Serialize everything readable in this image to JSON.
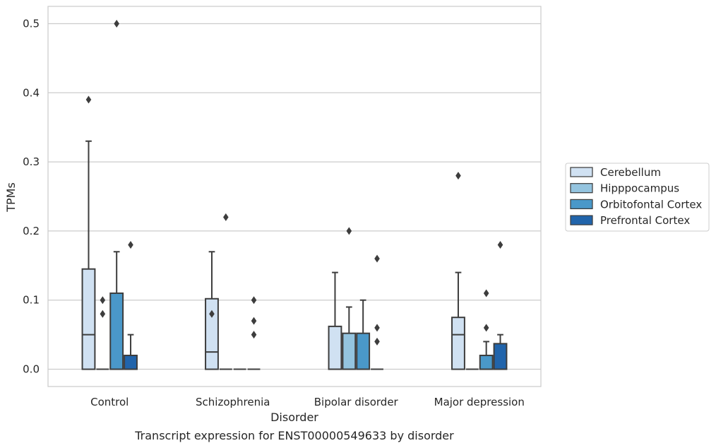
{
  "chart_data": {
    "type": "box",
    "title": "",
    "caption": "Transcript expression for ENST00000549633 by disorder",
    "xlabel": "Disorder",
    "ylabel": "TPMs",
    "ylim": [
      -0.025,
      0.525
    ],
    "yticks": [
      "0.0",
      "0.1",
      "0.2",
      "0.3",
      "0.4",
      "0.5"
    ],
    "ytick_values": [
      0.0,
      0.1,
      0.2,
      0.3,
      0.4,
      0.5
    ],
    "grid": "horizontal",
    "legend_position": "right",
    "categories": [
      "Control",
      "Schizophrenia",
      "Bipolar disorder",
      "Major depression"
    ],
    "series": [
      {
        "name": "Cerebellum",
        "color": "#d0e1f2",
        "boxes": [
          {
            "q1": 0.0,
            "median": 0.05,
            "q3": 0.145,
            "whisker_low": 0.0,
            "whisker_high": 0.33,
            "outliers": [
              0.39
            ]
          },
          {
            "q1": 0.0,
            "median": 0.025,
            "q3": 0.102,
            "whisker_low": 0.0,
            "whisker_high": 0.17,
            "outliers": [
              0.08
            ]
          },
          {
            "q1": 0.0,
            "median": 0.0,
            "q3": 0.062,
            "whisker_low": 0.0,
            "whisker_high": 0.14,
            "outliers": []
          },
          {
            "q1": 0.0,
            "median": 0.05,
            "q3": 0.075,
            "whisker_low": 0.0,
            "whisker_high": 0.14,
            "outliers": [
              0.28
            ]
          }
        ]
      },
      {
        "name": "Hipppocampus",
        "color": "#94c4df",
        "boxes": [
          {
            "q1": 0.0,
            "median": 0.0,
            "q3": 0.0,
            "whisker_low": 0.0,
            "whisker_high": 0.0,
            "outliers": [
              0.1,
              0.08
            ]
          },
          {
            "q1": 0.0,
            "median": 0.0,
            "q3": 0.0,
            "whisker_low": 0.0,
            "whisker_high": 0.0,
            "outliers": [
              0.22
            ]
          },
          {
            "q1": 0.0,
            "median": 0.0,
            "q3": 0.052,
            "whisker_low": 0.0,
            "whisker_high": 0.09,
            "outliers": [
              0.2
            ]
          },
          {
            "q1": 0.0,
            "median": 0.0,
            "q3": 0.0,
            "whisker_low": 0.0,
            "whisker_high": 0.0,
            "outliers": []
          }
        ]
      },
      {
        "name": "Orbitofontal Cortex",
        "color": "#4a98c9",
        "boxes": [
          {
            "q1": 0.0,
            "median": 0.0,
            "q3": 0.11,
            "whisker_low": 0.0,
            "whisker_high": 0.17,
            "outliers": [
              0.5
            ]
          },
          {
            "q1": 0.0,
            "median": 0.0,
            "q3": 0.0,
            "whisker_low": 0.0,
            "whisker_high": 0.0,
            "outliers": []
          },
          {
            "q1": 0.0,
            "median": 0.0,
            "q3": 0.052,
            "whisker_low": 0.0,
            "whisker_high": 0.1,
            "outliers": []
          },
          {
            "q1": 0.0,
            "median": 0.0,
            "q3": 0.02,
            "whisker_low": 0.0,
            "whisker_high": 0.04,
            "outliers": [
              0.11,
              0.06
            ]
          }
        ]
      },
      {
        "name": "Prefrontal Cortex",
        "color": "#2164ab",
        "boxes": [
          {
            "q1": 0.0,
            "median": 0.0,
            "q3": 0.02,
            "whisker_low": 0.0,
            "whisker_high": 0.05,
            "outliers": [
              0.18
            ]
          },
          {
            "q1": 0.0,
            "median": 0.0,
            "q3": 0.0,
            "whisker_low": 0.0,
            "whisker_high": 0.0,
            "outliers": [
              0.1,
              0.07,
              0.05
            ]
          },
          {
            "q1": 0.0,
            "median": 0.0,
            "q3": 0.0,
            "whisker_low": 0.0,
            "whisker_high": 0.0,
            "outliers": [
              0.16,
              0.06,
              0.04
            ]
          },
          {
            "q1": 0.0,
            "median": 0.0,
            "q3": 0.037,
            "whisker_low": 0.0,
            "whisker_high": 0.05,
            "outliers": [
              0.18
            ]
          }
        ]
      }
    ]
  }
}
